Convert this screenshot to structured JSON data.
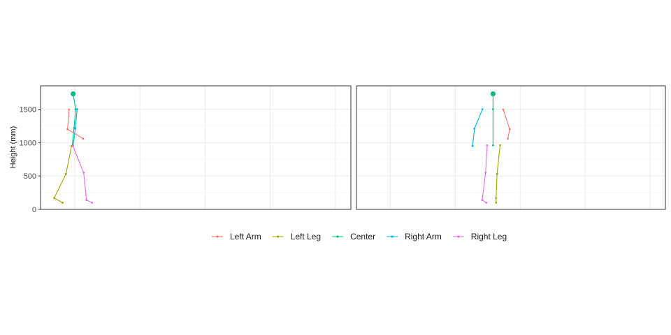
{
  "chart_data": {
    "type": "line",
    "ylabel": "Height (mm)",
    "ylim": [
      0,
      1850
    ],
    "yticks": [
      0,
      500,
      1000,
      1500
    ],
    "grid": true,
    "legend_position": "bottom",
    "legend": [
      "Left Arm",
      "Left Leg",
      "Center",
      "Right Arm",
      "Right Leg"
    ],
    "colors": {
      "Left Arm": "#F8766D",
      "Left Leg": "#A3A500",
      "Center": "#00BF7D",
      "Right Arm": "#00B0F6",
      "Right Leg": "#E76BF3"
    },
    "panels": [
      {
        "xlim": [
          0,
          100
        ],
        "series": [
          {
            "name": "Center",
            "points": [
              [
                10.5,
                1730
              ],
              [
                11.3,
                1500
              ],
              [
                10.8,
                1220
              ],
              [
                10.2,
                950
              ]
            ],
            "head": [
              10.5,
              1730
            ]
          },
          {
            "name": "Left Arm",
            "points": [
              [
                9.2,
                1495
              ],
              [
                8.7,
                1200
              ],
              [
                13.7,
                1060
              ]
            ]
          },
          {
            "name": "Right Arm",
            "points": [
              [
                11.8,
                1500
              ],
              [
                11.2,
                1210
              ],
              [
                10.5,
                950
              ]
            ]
          },
          {
            "name": "Left Leg",
            "points": [
              [
                10.0,
                950
              ],
              [
                8.2,
                530
              ],
              [
                4.4,
                170
              ],
              [
                7.1,
                100
              ]
            ]
          },
          {
            "name": "Right Leg",
            "points": [
              [
                10.4,
                950
              ],
              [
                13.9,
                550
              ],
              [
                14.8,
                140
              ],
              [
                16.6,
                100
              ]
            ]
          }
        ]
      },
      {
        "xlim": [
          0,
          100
        ],
        "series": [
          {
            "name": "Center",
            "points": [
              [
                44.2,
                1730
              ],
              [
                44.2,
                1500
              ],
              [
                44.2,
                960
              ]
            ],
            "head": [
              44.2,
              1730
            ]
          },
          {
            "name": "Left Arm",
            "points": [
              [
                47.5,
                1495
              ],
              [
                49.6,
                1200
              ],
              [
                49.0,
                1060
              ]
            ]
          },
          {
            "name": "Right Arm",
            "points": [
              [
                40.8,
                1500
              ],
              [
                38.2,
                1210
              ],
              [
                37.6,
                950
              ]
            ]
          },
          {
            "name": "Left Leg",
            "points": [
              [
                46.5,
                960
              ],
              [
                45.5,
                530
              ],
              [
                45.2,
                170
              ],
              [
                45.2,
                100
              ]
            ]
          },
          {
            "name": "Right Leg",
            "points": [
              [
                42.3,
                960
              ],
              [
                41.8,
                550
              ],
              [
                40.7,
                140
              ],
              [
                42.0,
                100
              ]
            ]
          }
        ]
      }
    ]
  }
}
